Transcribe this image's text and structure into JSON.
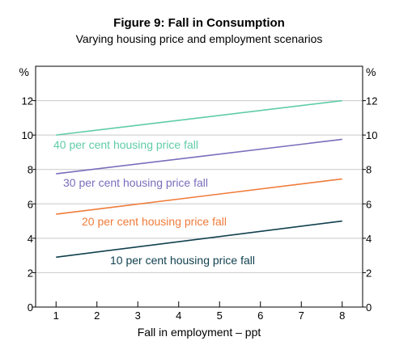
{
  "chart_data": {
    "type": "line",
    "title": "Figure 9: Fall in Consumption",
    "subtitle": "Varying housing price and employment scenarios",
    "xlabel": "Fall in employment – ppt",
    "ylabel_left": "%",
    "ylabel_right": "%",
    "x": [
      1,
      8
    ],
    "xticks": [
      1,
      2,
      3,
      4,
      5,
      6,
      7,
      8
    ],
    "xtick_labels": [
      "1",
      "2",
      "3",
      "4",
      "5",
      "6",
      "7",
      "8"
    ],
    "xlim": [
      0.5,
      8.5
    ],
    "ylim": [
      0,
      14
    ],
    "yticks": [
      0,
      2,
      4,
      6,
      8,
      10,
      12
    ],
    "ytick_labels": [
      "0",
      "2",
      "4",
      "6",
      "8",
      "10",
      "12"
    ],
    "grid": true,
    "legend": "inline labels",
    "series": [
      {
        "name": "40 per cent housing price fall",
        "values": [
          10.0,
          12.0
        ],
        "color": "#5fcca6"
      },
      {
        "name": "30 per cent housing price fall",
        "values": [
          7.75,
          9.75
        ],
        "color": "#7a6dbb"
      },
      {
        "name": "20 per cent housing price fall",
        "values": [
          5.4,
          7.45
        ],
        "color": "#ef7b3a"
      },
      {
        "name": "10 per cent housing price fall",
        "values": [
          2.9,
          5.0
        ],
        "color": "#103f4e"
      }
    ]
  },
  "colors": {
    "grid": "#c9c9c9",
    "axis": "#000000",
    "text": "#000000"
  }
}
